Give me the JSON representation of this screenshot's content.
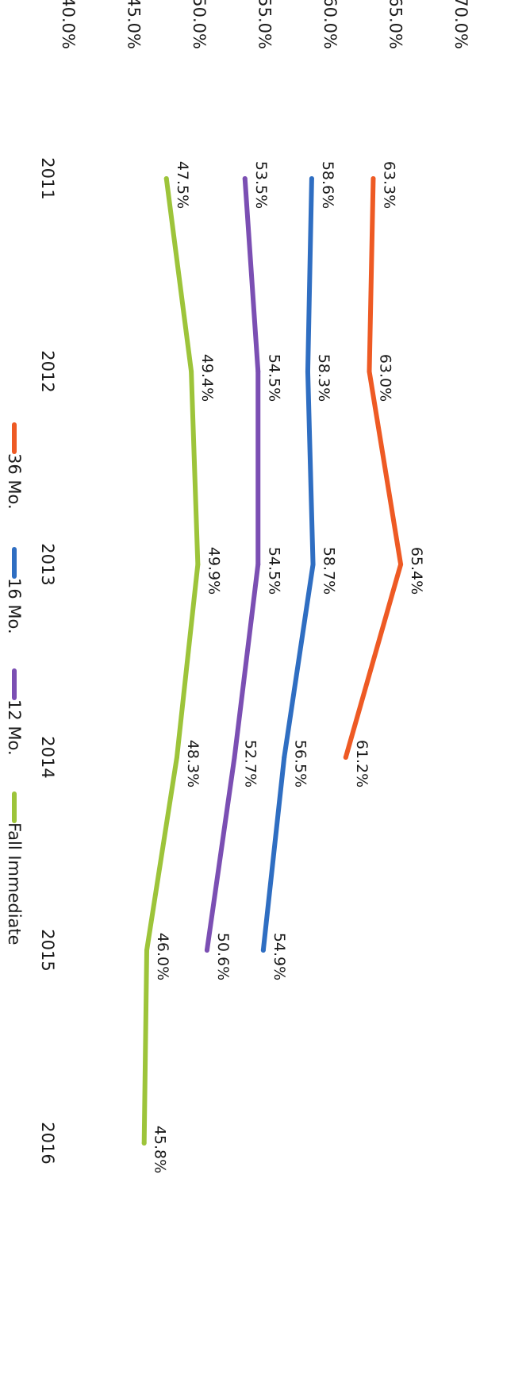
{
  "chart_data": {
    "type": "line",
    "categories": [
      "2011",
      "2012",
      "2013",
      "2014",
      "2015",
      "2016"
    ],
    "y_ticks": [
      "40.0%",
      "45.0%",
      "50.0%",
      "55.0%",
      "60.0%",
      "65.0%",
      "70.0%"
    ],
    "ylim": [
      40,
      70
    ],
    "grid": false,
    "legend_position": "bottom",
    "series": [
      {
        "name": "36 Mo.",
        "color": "#ee5a24",
        "values": [
          63.3,
          63.0,
          65.4,
          61.2,
          null,
          null
        ],
        "labels": [
          "63.3%",
          "63.0%",
          "65.4%",
          "61.2%",
          null,
          null
        ]
      },
      {
        "name": "16 Mo.",
        "color": "#2f6ec2",
        "values": [
          58.6,
          58.3,
          58.7,
          56.5,
          54.9,
          null
        ],
        "labels": [
          "58.6%",
          "58.3%",
          "58.7%",
          "56.5%",
          "54.9%",
          null
        ]
      },
      {
        "name": "12 Mo.",
        "color": "#7b4fb3",
        "values": [
          53.5,
          54.5,
          54.5,
          52.7,
          50.6,
          null
        ],
        "labels": [
          "53.5%",
          "54.5%",
          "54.5%",
          "52.7%",
          "50.6%",
          null
        ]
      },
      {
        "name": "Fall Immediate",
        "color": "#9dc43a",
        "values": [
          47.5,
          49.4,
          49.9,
          48.3,
          46.0,
          45.8
        ],
        "labels": [
          "47.5%",
          "49.4%",
          "49.9%",
          "48.3%",
          "46.0%",
          "45.8%"
        ]
      }
    ]
  }
}
